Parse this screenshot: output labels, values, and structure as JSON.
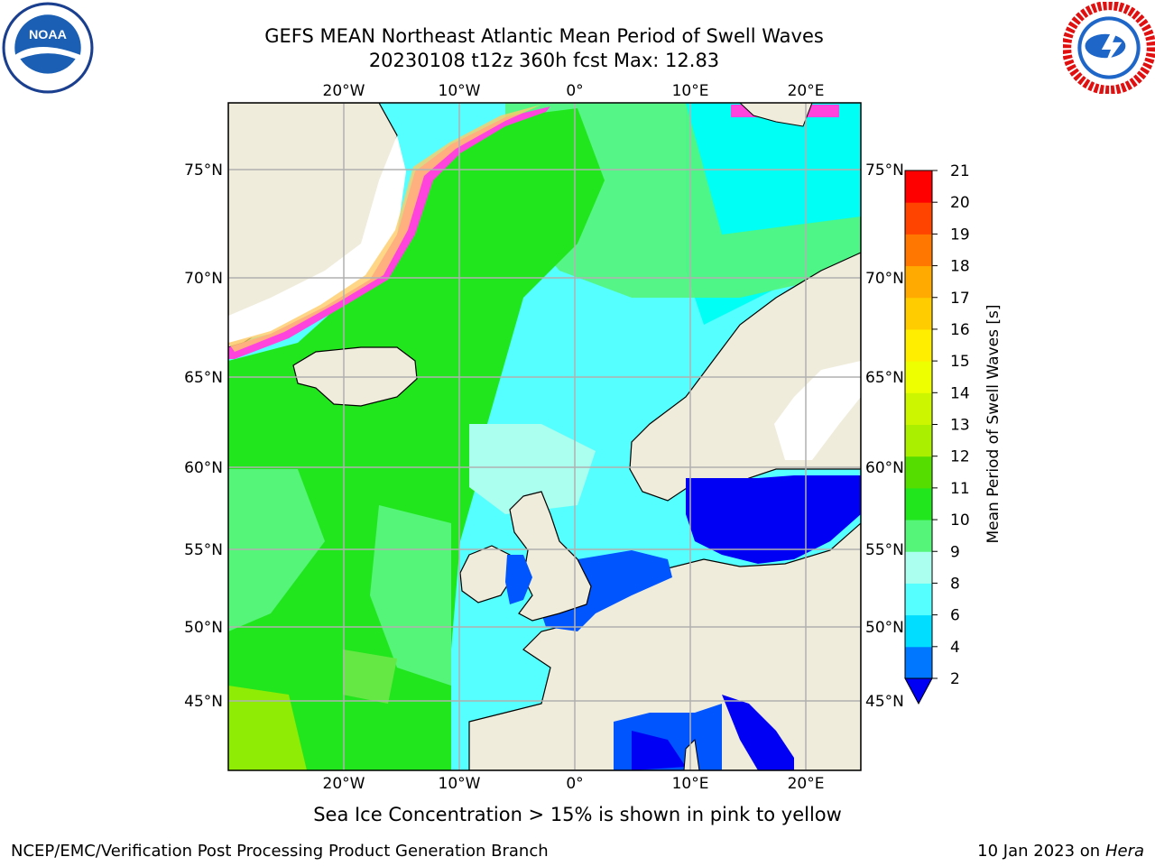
{
  "header": {
    "title_line1": "GEFS MEAN Northeast Atlantic Mean Period of Swell Waves",
    "title_line2": "20230108 t12z 360h fcst   Max: 12.83"
  },
  "logos": {
    "left": "noaa-logo",
    "left_text": "NOAA",
    "right": "nws-logo"
  },
  "map": {
    "lon_ticks_top": [
      "20°W",
      "10°W",
      "0°",
      "10°E",
      "20°E"
    ],
    "lon_ticks_bottom": [
      "20°W",
      "10°W",
      "0°",
      "10°E",
      "20°E"
    ],
    "lat_ticks_left": [
      "75°N",
      "70°N",
      "65°N",
      "60°N",
      "55°N",
      "50°N",
      "45°N"
    ],
    "lat_ticks_right": [
      "75°N",
      "70°N",
      "65°N",
      "60°N",
      "55°N",
      "50°N",
      "45°N"
    ],
    "colors": {
      "land": "#efecdb",
      "ocean_green": "#22e61d",
      "ocean_lightgreen": "#55f57a",
      "ocean_cyan": "#55ffff",
      "ocean_aqua": "#00fff5",
      "inland_blue": "#0000f5",
      "med_blue": "#0055ff",
      "ice_pink": "#ff44dd",
      "ice_yellow": "#ffcc66",
      "grid": "#b0b0b0"
    }
  },
  "colorbar": {
    "label": "Mean Period of Swell Waves [s]",
    "ticks": [
      "2",
      "4",
      "6",
      "8",
      "9",
      "10",
      "11",
      "12",
      "13",
      "14",
      "15",
      "16",
      "17",
      "18",
      "19",
      "20",
      "21"
    ],
    "colors": [
      "#0000f5",
      "#0077ff",
      "#00ddff",
      "#55ffff",
      "#aaffee",
      "#55f57a",
      "#22e61d",
      "#55dd00",
      "#aaee00",
      "#ccf500",
      "#eeff00",
      "#ffee00",
      "#ffcc00",
      "#ffaa00",
      "#ff7700",
      "#ff4400",
      "#ff0000"
    ]
  },
  "footer": {
    "sea_ice_note": "Sea Ice Concentration > 15% is shown in pink to yellow",
    "credit": "NCEP/EMC/Verification Post Processing Product Generation Branch",
    "date_prefix": "10 Jan 2023 on ",
    "date_host": "Hera"
  }
}
